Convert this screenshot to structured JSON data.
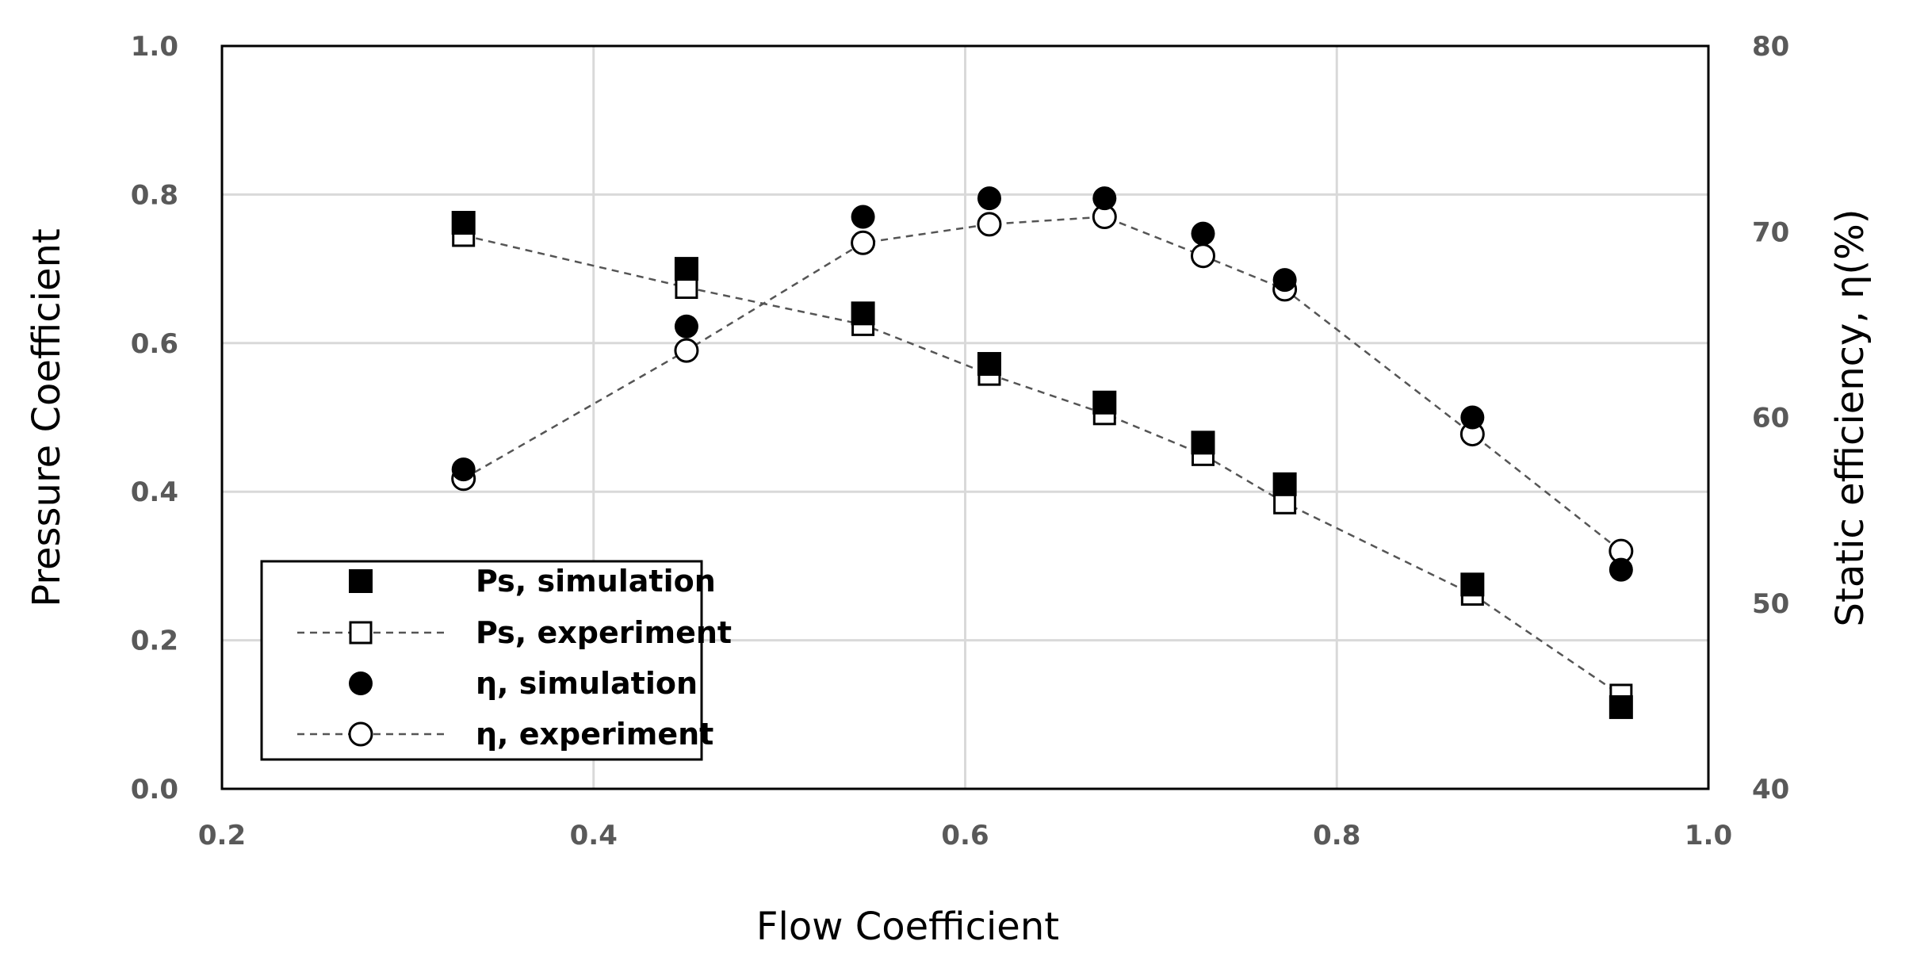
{
  "chart_data": {
    "type": "scatter",
    "xlabel": "Flow Coefficient",
    "ylabel": "Pressure Coefficient",
    "y2label": "Static efficiency, η(%)",
    "xlim": [
      0.2,
      1.0
    ],
    "ylim": [
      0.0,
      1.0
    ],
    "y2lim": [
      40,
      80
    ],
    "xticks": [
      "0.2",
      "0.4",
      "0.6",
      "0.8",
      "1.0"
    ],
    "yticks": [
      "0.0",
      "0.2",
      "0.4",
      "0.6",
      "0.8",
      "1.0"
    ],
    "y2ticks": [
      "40",
      "50",
      "60",
      "70",
      "80"
    ],
    "grid": true,
    "legend_position": "bottom-left",
    "series": [
      {
        "name": "Ps, simulation",
        "axis": "left",
        "marker": "filled-square",
        "line": false,
        "x": [
          0.33,
          0.45,
          0.545,
          0.613,
          0.675,
          0.728,
          0.772,
          0.873,
          0.953
        ],
        "y": [
          0.762,
          0.7,
          0.64,
          0.572,
          0.52,
          0.466,
          0.41,
          0.275,
          0.11
        ]
      },
      {
        "name": "Ps, experiment",
        "axis": "left",
        "marker": "open-square",
        "line": true,
        "x": [
          0.33,
          0.45,
          0.545,
          0.613,
          0.675,
          0.728,
          0.772,
          0.873,
          0.953
        ],
        "y": [
          0.745,
          0.675,
          0.625,
          0.558,
          0.505,
          0.45,
          0.385,
          0.262,
          0.126
        ]
      },
      {
        "name": "η, simulation",
        "axis": "right",
        "marker": "filled-circle",
        "line": false,
        "x": [
          0.33,
          0.45,
          0.545,
          0.613,
          0.675,
          0.728,
          0.772,
          0.873,
          0.953
        ],
        "y": [
          57.2,
          64.9,
          70.8,
          71.8,
          71.8,
          69.9,
          67.4,
          60.0,
          51.8
        ]
      },
      {
        "name": "η, experiment",
        "axis": "right",
        "marker": "open-circle",
        "line": true,
        "x": [
          0.33,
          0.45,
          0.545,
          0.613,
          0.675,
          0.728,
          0.772,
          0.873,
          0.953
        ],
        "y": [
          56.7,
          63.6,
          69.4,
          70.4,
          70.8,
          68.7,
          66.9,
          59.1,
          52.8
        ]
      }
    ]
  }
}
